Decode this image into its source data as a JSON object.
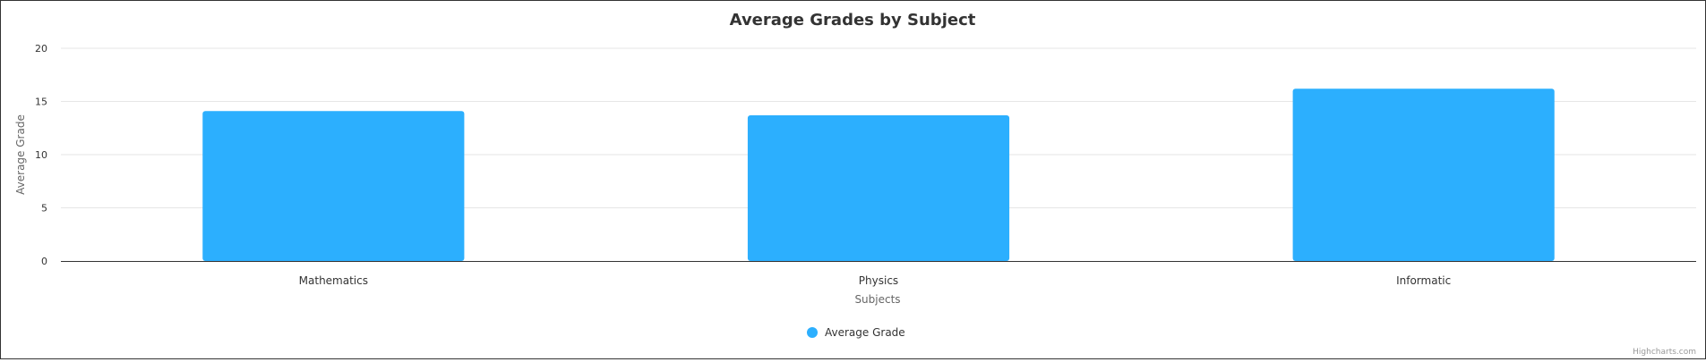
{
  "chart_data": {
    "type": "bar",
    "title": "Average Grades by Subject",
    "categories": [
      "Mathematics",
      "Physics",
      "Informatic"
    ],
    "series": [
      {
        "name": "Average Grade",
        "values": [
          14.1,
          13.7,
          16.2
        ]
      }
    ],
    "xlabel": "Subjects",
    "ylabel": "Average Grade",
    "ylim": [
      0,
      20
    ],
    "yticks": [
      0,
      5,
      10,
      15,
      20
    ],
    "grid": true,
    "legend": "bottom-center",
    "colors": {
      "bar": "#2caffe",
      "grid": "#e6e6e6",
      "axis": "#333333"
    }
  },
  "credits": "Highcharts.com"
}
